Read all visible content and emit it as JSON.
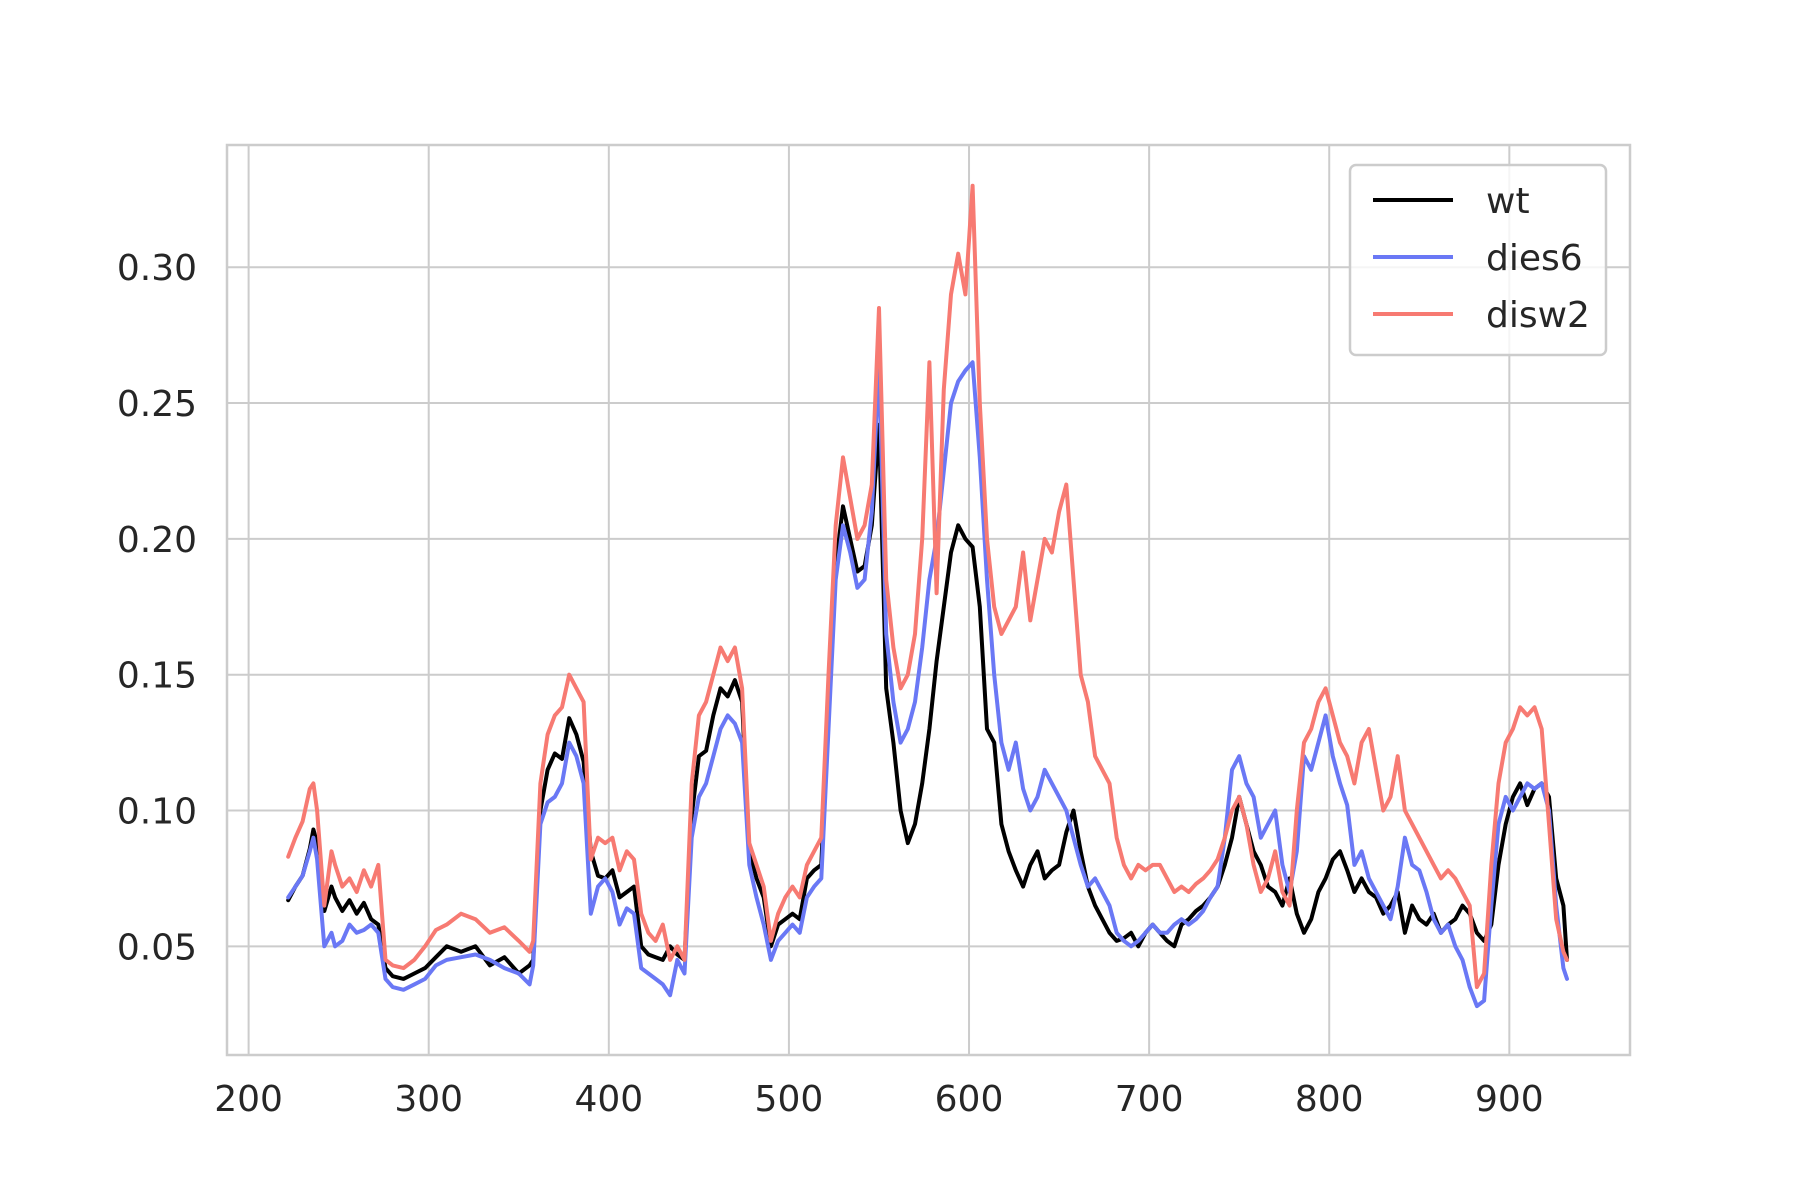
{
  "chart_data": {
    "type": "line",
    "title": "",
    "xlabel": "",
    "ylabel": "",
    "xlim": [
      188,
      967
    ],
    "ylim": [
      0.01,
      0.345
    ],
    "x_ticks": [
      200,
      300,
      400,
      500,
      600,
      700,
      800,
      900
    ],
    "y_ticks": [
      0.05,
      0.1,
      0.15,
      0.2,
      0.25,
      0.3
    ],
    "grid": true,
    "legend_position": "top-right",
    "series": [
      {
        "name": "wt",
        "color": "#000000",
        "opacity": 1.0,
        "x": [
          222,
          226,
          230,
          234,
          236,
          238,
          242,
          246,
          248,
          252,
          256,
          260,
          264,
          268,
          272,
          276,
          280,
          286,
          292,
          298,
          304,
          310,
          318,
          326,
          334,
          342,
          350,
          356,
          358,
          362,
          366,
          370,
          374,
          378,
          382,
          386,
          390,
          394,
          398,
          402,
          406,
          410,
          414,
          418,
          422,
          426,
          430,
          434,
          438,
          442,
          446,
          450,
          454,
          458,
          462,
          466,
          470,
          474,
          478,
          482,
          486,
          490,
          494,
          498,
          502,
          506,
          510,
          514,
          518,
          522,
          526,
          530,
          534,
          538,
          542,
          546,
          550,
          554,
          558,
          562,
          566,
          570,
          574,
          578,
          582,
          586,
          590,
          594,
          598,
          602,
          606,
          610,
          614,
          618,
          622,
          626,
          630,
          634,
          638,
          642,
          646,
          650,
          654,
          658,
          662,
          666,
          670,
          674,
          678,
          682,
          686,
          690,
          694,
          698,
          702,
          706,
          710,
          714,
          718,
          722,
          726,
          730,
          734,
          738,
          742,
          746,
          750,
          754,
          758,
          762,
          766,
          770,
          774,
          778,
          782,
          786,
          790,
          794,
          798,
          802,
          806,
          810,
          814,
          818,
          822,
          826,
          830,
          834,
          838,
          842,
          846,
          850,
          854,
          858,
          862,
          866,
          870,
          874,
          878,
          882,
          886,
          890,
          894,
          898,
          902,
          906,
          910,
          914,
          918,
          922,
          926,
          930,
          932
        ],
        "values": [
          0.067,
          0.072,
          0.076,
          0.086,
          0.093,
          0.088,
          0.063,
          0.072,
          0.068,
          0.063,
          0.067,
          0.062,
          0.066,
          0.06,
          0.058,
          0.042,
          0.039,
          0.038,
          0.04,
          0.042,
          0.046,
          0.05,
          0.048,
          0.05,
          0.043,
          0.046,
          0.04,
          0.043,
          0.045,
          0.1,
          0.115,
          0.121,
          0.119,
          0.134,
          0.128,
          0.118,
          0.085,
          0.076,
          0.075,
          0.078,
          0.068,
          0.07,
          0.072,
          0.05,
          0.047,
          0.046,
          0.045,
          0.05,
          0.047,
          0.045,
          0.098,
          0.12,
          0.122,
          0.135,
          0.145,
          0.142,
          0.148,
          0.14,
          0.085,
          0.075,
          0.068,
          0.05,
          0.058,
          0.06,
          0.062,
          0.06,
          0.075,
          0.078,
          0.08,
          0.14,
          0.19,
          0.212,
          0.2,
          0.188,
          0.19,
          0.205,
          0.242,
          0.145,
          0.125,
          0.1,
          0.088,
          0.095,
          0.11,
          0.13,
          0.155,
          0.175,
          0.195,
          0.205,
          0.2,
          0.197,
          0.175,
          0.13,
          0.125,
          0.095,
          0.085,
          0.078,
          0.072,
          0.08,
          0.085,
          0.075,
          0.078,
          0.08,
          0.092,
          0.1,
          0.085,
          0.072,
          0.065,
          0.06,
          0.055,
          0.052,
          0.053,
          0.055,
          0.05,
          0.055,
          0.058,
          0.055,
          0.052,
          0.05,
          0.058,
          0.06,
          0.063,
          0.065,
          0.068,
          0.072,
          0.08,
          0.09,
          0.105,
          0.095,
          0.085,
          0.08,
          0.072,
          0.07,
          0.065,
          0.075,
          0.062,
          0.055,
          0.06,
          0.07,
          0.075,
          0.082,
          0.085,
          0.078,
          0.07,
          0.075,
          0.07,
          0.068,
          0.062,
          0.065,
          0.07,
          0.055,
          0.065,
          0.06,
          0.058,
          0.062,
          0.055,
          0.058,
          0.06,
          0.065,
          0.062,
          0.055,
          0.052,
          0.058,
          0.08,
          0.095,
          0.105,
          0.11,
          0.102,
          0.108,
          0.11,
          0.105,
          0.075,
          0.065,
          0.045
        ],
        "__bind_probe_values__": ""
      },
      {
        "name": "dies6",
        "color": "#6a78f5",
        "opacity": 1.0,
        "x": [
          222,
          226,
          230,
          234,
          236,
          238,
          242,
          246,
          248,
          252,
          256,
          260,
          264,
          268,
          272,
          276,
          280,
          286,
          292,
          298,
          304,
          310,
          318,
          326,
          334,
          342,
          350,
          356,
          358,
          362,
          366,
          370,
          374,
          378,
          382,
          386,
          390,
          394,
          398,
          402,
          406,
          410,
          414,
          418,
          422,
          426,
          430,
          434,
          438,
          442,
          446,
          450,
          454,
          458,
          462,
          466,
          470,
          474,
          478,
          482,
          486,
          490,
          494,
          498,
          502,
          506,
          510,
          514,
          518,
          522,
          526,
          530,
          534,
          538,
          542,
          546,
          550,
          554,
          558,
          562,
          566,
          570,
          574,
          578,
          582,
          586,
          590,
          594,
          598,
          602,
          606,
          610,
          614,
          618,
          622,
          626,
          630,
          634,
          638,
          642,
          646,
          650,
          654,
          658,
          662,
          666,
          670,
          674,
          678,
          682,
          686,
          690,
          694,
          698,
          702,
          706,
          710,
          714,
          718,
          722,
          726,
          730,
          734,
          738,
          742,
          746,
          750,
          754,
          758,
          762,
          766,
          770,
          774,
          778,
          782,
          786,
          790,
          794,
          798,
          802,
          806,
          810,
          814,
          818,
          822,
          826,
          830,
          834,
          838,
          842,
          846,
          850,
          854,
          858,
          862,
          866,
          870,
          874,
          878,
          882,
          886,
          890,
          894,
          898,
          902,
          906,
          910,
          914,
          918,
          922,
          926,
          930,
          932
        ],
        "values": [
          0.068,
          0.072,
          0.076,
          0.085,
          0.09,
          0.082,
          0.05,
          0.055,
          0.05,
          0.052,
          0.058,
          0.055,
          0.056,
          0.058,
          0.055,
          0.038,
          0.035,
          0.034,
          0.036,
          0.038,
          0.043,
          0.045,
          0.046,
          0.047,
          0.045,
          0.042,
          0.04,
          0.036,
          0.043,
          0.095,
          0.103,
          0.105,
          0.11,
          0.125,
          0.12,
          0.11,
          0.062,
          0.072,
          0.075,
          0.07,
          0.058,
          0.064,
          0.062,
          0.042,
          0.04,
          0.038,
          0.036,
          0.032,
          0.045,
          0.04,
          0.09,
          0.105,
          0.11,
          0.12,
          0.13,
          0.135,
          0.132,
          0.125,
          0.08,
          0.068,
          0.058,
          0.045,
          0.052,
          0.055,
          0.058,
          0.055,
          0.068,
          0.072,
          0.075,
          0.13,
          0.185,
          0.205,
          0.195,
          0.182,
          0.185,
          0.21,
          0.265,
          0.165,
          0.14,
          0.125,
          0.13,
          0.14,
          0.16,
          0.185,
          0.2,
          0.225,
          0.25,
          0.258,
          0.262,
          0.265,
          0.23,
          0.185,
          0.15,
          0.125,
          0.115,
          0.125,
          0.108,
          0.1,
          0.105,
          0.115,
          0.11,
          0.105,
          0.1,
          0.09,
          0.08,
          0.072,
          0.075,
          0.07,
          0.065,
          0.055,
          0.052,
          0.05,
          0.052,
          0.055,
          0.058,
          0.055,
          0.055,
          0.058,
          0.06,
          0.058,
          0.06,
          0.063,
          0.068,
          0.072,
          0.09,
          0.115,
          0.12,
          0.11,
          0.105,
          0.09,
          0.095,
          0.1,
          0.08,
          0.07,
          0.085,
          0.12,
          0.115,
          0.125,
          0.135,
          0.12,
          0.11,
          0.102,
          0.08,
          0.085,
          0.075,
          0.07,
          0.065,
          0.06,
          0.072,
          0.09,
          0.08,
          0.078,
          0.07,
          0.06,
          0.055,
          0.058,
          0.05,
          0.045,
          0.035,
          0.028,
          0.03,
          0.065,
          0.095,
          0.105,
          0.1,
          0.105,
          0.11,
          0.108,
          0.11,
          0.1,
          0.065,
          0.042,
          0.038
        ],
        "__bind_probe_values__": ""
      },
      {
        "name": "disw2",
        "color": "#f77a72",
        "opacity": 1.0,
        "x": [
          222,
          226,
          230,
          234,
          236,
          238,
          242,
          246,
          248,
          252,
          256,
          260,
          264,
          268,
          272,
          276,
          280,
          286,
          292,
          298,
          304,
          310,
          318,
          326,
          334,
          342,
          350,
          356,
          358,
          362,
          366,
          370,
          374,
          378,
          382,
          386,
          390,
          394,
          398,
          402,
          406,
          410,
          414,
          418,
          422,
          426,
          430,
          434,
          438,
          442,
          446,
          450,
          454,
          458,
          462,
          466,
          470,
          474,
          478,
          482,
          486,
          490,
          494,
          498,
          502,
          506,
          510,
          514,
          518,
          522,
          526,
          530,
          534,
          538,
          542,
          546,
          550,
          554,
          558,
          562,
          566,
          570,
          574,
          578,
          582,
          586,
          590,
          594,
          598,
          602,
          606,
          610,
          614,
          618,
          622,
          626,
          630,
          634,
          638,
          642,
          646,
          650,
          654,
          658,
          662,
          666,
          670,
          674,
          678,
          682,
          686,
          690,
          694,
          698,
          702,
          706,
          710,
          714,
          718,
          722,
          726,
          730,
          734,
          738,
          742,
          746,
          750,
          754,
          758,
          762,
          766,
          770,
          774,
          778,
          782,
          786,
          790,
          794,
          798,
          802,
          806,
          810,
          814,
          818,
          822,
          826,
          830,
          834,
          838,
          842,
          846,
          850,
          854,
          858,
          862,
          866,
          870,
          874,
          878,
          882,
          886,
          890,
          894,
          898,
          902,
          906,
          910,
          914,
          918,
          922,
          926,
          930,
          932
        ],
        "values": [
          0.083,
          0.09,
          0.096,
          0.108,
          0.11,
          0.1,
          0.065,
          0.085,
          0.08,
          0.072,
          0.075,
          0.07,
          0.078,
          0.072,
          0.08,
          0.045,
          0.043,
          0.042,
          0.045,
          0.05,
          0.056,
          0.058,
          0.062,
          0.06,
          0.055,
          0.057,
          0.052,
          0.048,
          0.052,
          0.11,
          0.128,
          0.135,
          0.138,
          0.15,
          0.145,
          0.14,
          0.082,
          0.09,
          0.088,
          0.09,
          0.078,
          0.085,
          0.082,
          0.062,
          0.055,
          0.052,
          0.058,
          0.045,
          0.05,
          0.045,
          0.11,
          0.135,
          0.14,
          0.15,
          0.16,
          0.155,
          0.16,
          0.145,
          0.088,
          0.08,
          0.072,
          0.052,
          0.062,
          0.068,
          0.072,
          0.068,
          0.08,
          0.085,
          0.09,
          0.15,
          0.205,
          0.23,
          0.215,
          0.2,
          0.205,
          0.22,
          0.285,
          0.185,
          0.16,
          0.145,
          0.15,
          0.165,
          0.2,
          0.265,
          0.18,
          0.255,
          0.29,
          0.305,
          0.29,
          0.33,
          0.25,
          0.2,
          0.175,
          0.165,
          0.17,
          0.175,
          0.195,
          0.17,
          0.185,
          0.2,
          0.195,
          0.21,
          0.22,
          0.185,
          0.15,
          0.14,
          0.12,
          0.115,
          0.11,
          0.09,
          0.08,
          0.075,
          0.08,
          0.078,
          0.08,
          0.08,
          0.075,
          0.07,
          0.072,
          0.07,
          0.073,
          0.075,
          0.078,
          0.082,
          0.09,
          0.1,
          0.105,
          0.095,
          0.08,
          0.07,
          0.075,
          0.085,
          0.07,
          0.065,
          0.1,
          0.125,
          0.13,
          0.14,
          0.145,
          0.135,
          0.125,
          0.12,
          0.11,
          0.125,
          0.13,
          0.115,
          0.1,
          0.105,
          0.12,
          0.1,
          0.095,
          0.09,
          0.085,
          0.08,
          0.075,
          0.078,
          0.075,
          0.07,
          0.065,
          0.035,
          0.04,
          0.08,
          0.11,
          0.125,
          0.13,
          0.138,
          0.135,
          0.138,
          0.13,
          0.095,
          0.06,
          0.048,
          0.045
        ],
        "__bind_probe_values__": ""
      }
    ]
  }
}
